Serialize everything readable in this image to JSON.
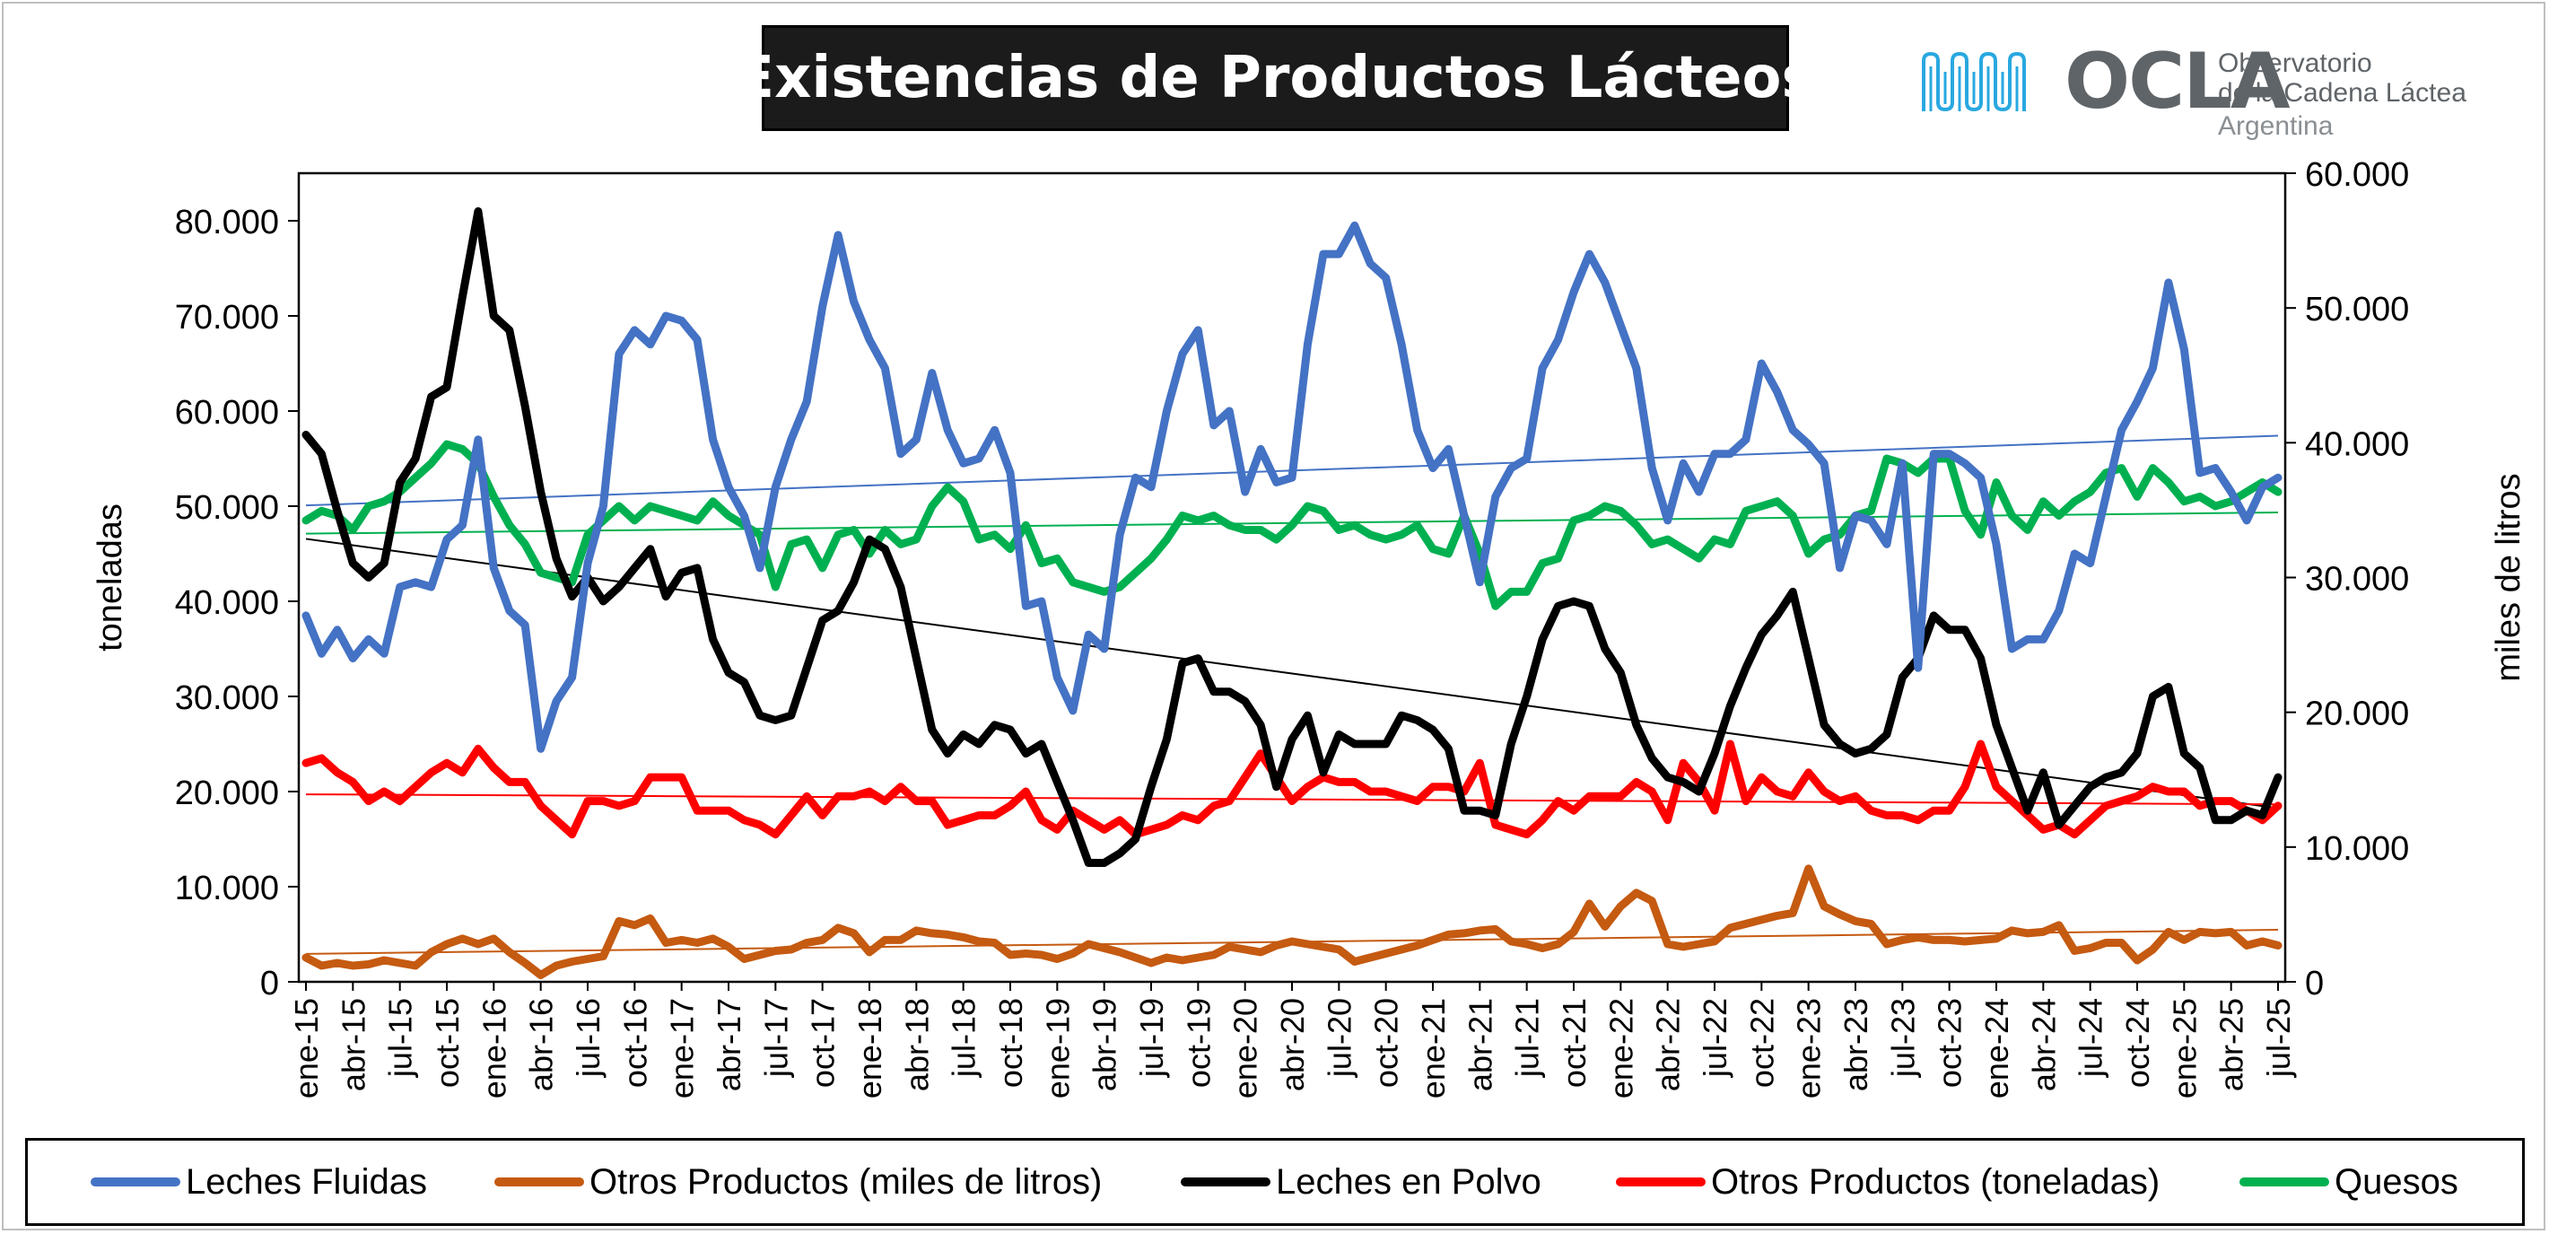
{
  "title": "Existencias de Productos Lácteos",
  "logo": {
    "name": "OCLA",
    "line1": "Observatorio",
    "line2": "de la Cadena Láctea",
    "country": "Argentina",
    "color": "#29a8e0"
  },
  "chart_data": {
    "type": "line",
    "title": "Existencias de Productos Lácteos",
    "ylabel_left": "toneladas",
    "ylabel_right": "miles de litros",
    "ylim_left": [
      0,
      85000
    ],
    "ylim_right": [
      0,
      60000
    ],
    "yticks_left": [
      "0",
      "10.000",
      "20.000",
      "30.000",
      "40.000",
      "50.000",
      "60.000",
      "70.000",
      "80.000"
    ],
    "yticks_right": [
      "0",
      "10.000",
      "20.000",
      "30.000",
      "40.000",
      "50.000",
      "60.000"
    ],
    "x_tick_labels": [
      "ene-15",
      "abr-15",
      "jul-15",
      "oct-15",
      "ene-16",
      "abr-16",
      "jul-16",
      "oct-16",
      "ene-17",
      "abr-17",
      "jul-17",
      "oct-17",
      "ene-18",
      "abr-18",
      "jul-18",
      "oct-18",
      "ene-19",
      "abr-19",
      "jul-19",
      "oct-19",
      "ene-20",
      "abr-20",
      "jul-20",
      "oct-20",
      "ene-21",
      "abr-21",
      "jul-21",
      "oct-21",
      "ene-22",
      "abr-22",
      "jul-22",
      "oct-22",
      "ene-23",
      "abr-23",
      "jul-23",
      "oct-23",
      "ene-24",
      "abr-24",
      "jul-24",
      "oct-24",
      "ene-25",
      "abr-25",
      "jul-25"
    ],
    "x_start": "ene-15",
    "x_end": "jul-25",
    "legend_position": "bottom",
    "grid": false,
    "series": [
      {
        "name": "Leches Fluidas",
        "axis": "left",
        "color": "#4472c4",
        "trendline": true,
        "values": [
          38500,
          34500,
          37000,
          34000,
          36000,
          34500,
          41500,
          42000,
          41500,
          46500,
          48000,
          57000,
          43500,
          39000,
          37500,
          24500,
          29500,
          32000,
          44000,
          50000,
          66000,
          68500,
          67000,
          70000,
          69500,
          67500,
          57000,
          52000,
          49000,
          43500,
          52000,
          57000,
          61000,
          71000,
          78500,
          71500,
          67500,
          64500,
          55500,
          57000,
          64000,
          58000,
          54500,
          55000,
          58000,
          53500,
          39500,
          40000,
          32000,
          28500,
          36500,
          35000,
          47000,
          53000,
          52000,
          60000,
          66000,
          68500,
          58500,
          60000,
          51500,
          56000,
          52500,
          53000,
          67000,
          76500,
          76500,
          79500,
          75500,
          74000,
          67000,
          58000,
          54000,
          56000,
          49000,
          42000,
          51000,
          54000,
          55000,
          64500,
          67500,
          72500,
          76500,
          73500,
          69000,
          64500,
          54000,
          48500,
          54500,
          51500,
          55500,
          55500,
          57000,
          65000,
          62000,
          58000,
          56500,
          54500,
          43500,
          49000,
          48500,
          46000,
          54500,
          33000,
          55500,
          55500,
          54500,
          53000,
          46000,
          35000,
          36000,
          36000,
          39000,
          45000,
          44000,
          51000,
          58000,
          61000,
          64500,
          73500,
          66500,
          53500,
          54000,
          51500,
          48500,
          52000,
          53000
        ]
      },
      {
        "name": "Otros Productos (miles de litros)",
        "axis": "right",
        "color": "#c55a11",
        "trendline": true,
        "values": [
          1800,
          1200,
          1400,
          1200,
          1300,
          1600,
          1400,
          1200,
          2200,
          2800,
          3200,
          2800,
          3200,
          2200,
          1400,
          500,
          1200,
          1500,
          1700,
          1900,
          4500,
          4200,
          4700,
          2900,
          3100,
          2900,
          3200,
          2600,
          1700,
          2000,
          2300,
          2400,
          2900,
          3100,
          4000,
          3600,
          2200,
          3100,
          3100,
          3800,
          3600,
          3500,
          3300,
          3000,
          2900,
          2000,
          2100,
          2000,
          1700,
          2100,
          2800,
          2500,
          2200,
          1800,
          1400,
          1800,
          1600,
          1800,
          2000,
          2600,
          2400,
          2200,
          2700,
          3000,
          2800,
          2600,
          2400,
          1500,
          1800,
          2100,
          2400,
          2700,
          3100,
          3500,
          3600,
          3800,
          3900,
          3000,
          2800,
          2500,
          2800,
          3700,
          5800,
          4100,
          5600,
          6600,
          6000,
          2800,
          2600,
          2800,
          3000,
          4000,
          4300,
          4600,
          4900,
          5100,
          8400,
          5600,
          5000,
          4500,
          4300,
          2800,
          3100,
          3300,
          3100,
          3100,
          3000,
          3100,
          3200,
          3800,
          3600,
          3700,
          4200,
          2300,
          2500,
          2900,
          2900,
          1600,
          2400,
          3700,
          3100,
          3700,
          3600,
          3700,
          2700,
          3000,
          2700
        ]
      },
      {
        "name": "Leches en Polvo",
        "axis": "left",
        "color": "#000000",
        "trendline": true,
        "values": [
          57500,
          55500,
          49500,
          44000,
          42500,
          44000,
          52500,
          55000,
          61500,
          62500,
          72000,
          81000,
          70000,
          68500,
          60500,
          51500,
          44500,
          40500,
          42500,
          40000,
          41500,
          43500,
          45500,
          40500,
          43000,
          43500,
          36000,
          32500,
          31500,
          28000,
          27500,
          28000,
          33000,
          38000,
          39000,
          42000,
          46500,
          45500,
          41500,
          34000,
          26500,
          24000,
          26000,
          25000,
          27000,
          26500,
          24000,
          25000,
          21000,
          17000,
          12500,
          12500,
          13500,
          15000,
          20500,
          25500,
          33500,
          34000,
          30500,
          30500,
          29500,
          27000,
          20500,
          25500,
          28000,
          22000,
          26000,
          25000,
          25000,
          25000,
          28000,
          27500,
          26500,
          24500,
          18000,
          18000,
          17500,
          25000,
          30000,
          36000,
          39500,
          40000,
          39500,
          35000,
          32500,
          27000,
          23500,
          21500,
          21000,
          20000,
          24000,
          29000,
          33000,
          36500,
          38500,
          41000,
          34000,
          27000,
          25000,
          24000,
          24500,
          26000,
          32000,
          34000,
          38500,
          37000,
          37000,
          34000,
          27000,
          22500,
          18000,
          22000,
          16500,
          18500,
          20500,
          21500,
          22000,
          24000,
          30000,
          31000,
          24000,
          22500,
          17000,
          17000,
          18000,
          17500,
          21500
        ]
      },
      {
        "name": "Otros Productos (toneladas)",
        "axis": "left",
        "color": "#ff0000",
        "trendline": true,
        "values": [
          23000,
          23500,
          22000,
          21000,
          19000,
          20000,
          19000,
          20500,
          22000,
          23000,
          22000,
          24500,
          22500,
          21000,
          21000,
          18500,
          17000,
          15500,
          19000,
          19000,
          18500,
          19000,
          21500,
          21500,
          21500,
          18000,
          18000,
          18000,
          17000,
          16500,
          15500,
          17500,
          19500,
          17500,
          19500,
          19500,
          20000,
          19000,
          20500,
          19000,
          19000,
          16500,
          17000,
          17500,
          17500,
          18500,
          20000,
          17000,
          16000,
          18000,
          17000,
          16000,
          17000,
          15500,
          16000,
          16500,
          17500,
          17000,
          18500,
          19000,
          21500,
          24000,
          21500,
          19000,
          20500,
          21500,
          21000,
          21000,
          20000,
          20000,
          19500,
          19000,
          20500,
          20500,
          20000,
          23000,
          16500,
          16000,
          15500,
          17000,
          19000,
          18000,
          19500,
          19500,
          19500,
          21000,
          20000,
          17000,
          23000,
          21000,
          18000,
          25000,
          19000,
          21500,
          20000,
          19500,
          22000,
          20000,
          19000,
          19500,
          18000,
          17500,
          17500,
          17000,
          18000,
          18000,
          20500,
          25000,
          20500,
          19000,
          17500,
          16000,
          16500,
          15500,
          17000,
          18500,
          19000,
          19500,
          20500,
          20000,
          20000,
          18500,
          19000,
          19000,
          18000,
          17000,
          18500
        ]
      },
      {
        "name": "Quesos",
        "axis": "left",
        "color": "#00b050",
        "trendline": true,
        "values": [
          48500,
          49500,
          49000,
          47500,
          50000,
          50500,
          51500,
          53000,
          54500,
          56500,
          56000,
          54500,
          51000,
          48000,
          46000,
          43000,
          42500,
          42000,
          47000,
          48500,
          50000,
          48500,
          50000,
          49500,
          49000,
          48500,
          50500,
          49000,
          48000,
          47000,
          41500,
          46000,
          46500,
          43500,
          47000,
          47500,
          45000,
          47500,
          46000,
          46500,
          50000,
          52000,
          50500,
          46500,
          47000,
          45500,
          48000,
          44000,
          44500,
          42000,
          41500,
          41000,
          41500,
          43000,
          44500,
          46500,
          49000,
          48500,
          49000,
          48000,
          47500,
          47500,
          46500,
          48000,
          50000,
          49500,
          47500,
          48000,
          47000,
          46500,
          47000,
          48000,
          45500,
          45000,
          49000,
          45000,
          39500,
          41000,
          41000,
          44000,
          44500,
          48500,
          49000,
          50000,
          49500,
          48000,
          46000,
          46500,
          45500,
          44500,
          46500,
          46000,
          49500,
          50000,
          50500,
          49000,
          45000,
          46500,
          47000,
          49000,
          49500,
          55000,
          54500,
          53500,
          55000,
          55000,
          49500,
          47000,
          52500,
          49000,
          47500,
          50500,
          49000,
          50500,
          51500,
          53500,
          54000,
          51000,
          54000,
          52500,
          50500,
          51000,
          50000,
          50500,
          51500,
          52500,
          51500
        ]
      }
    ]
  }
}
